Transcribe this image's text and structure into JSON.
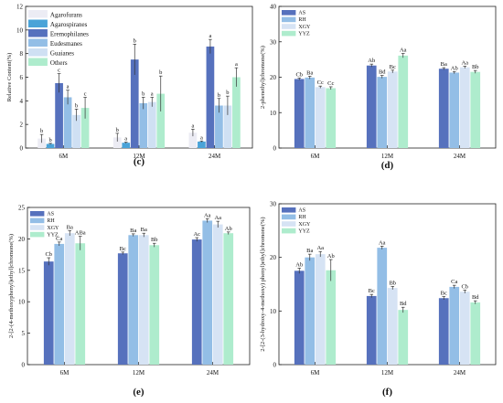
{
  "figure": {
    "series_colors": {
      "Agarofurans": "#ececf4",
      "Agarospiranes": "#4aa3d8",
      "Eremophilanes": "#5671bd",
      "Eudesmanes": "#93bee6",
      "Guaianes": "#cfe0f3",
      "Others": "#aeeccd",
      "AS": "#5671bd",
      "RH": "#93bee6",
      "XGY": "#d6e3f4",
      "YYZ": "#aeeccd"
    }
  },
  "chart_data": [
    {
      "type": "bar",
      "panel_label": "(c)",
      "ylabel": "Relative Content(%)",
      "ylim": [
        0,
        12
      ],
      "yticks": [
        0,
        2,
        4,
        6,
        8,
        10,
        12
      ],
      "categories": [
        "6M",
        "12M",
        "24M"
      ],
      "legend_position": "top-left",
      "series": [
        {
          "name": "Agarofurans",
          "values": [
            0.8,
            0.9,
            1.3
          ],
          "errors": [
            0.35,
            0.35,
            0.3
          ],
          "letters": [
            "b",
            "b",
            "a"
          ]
        },
        {
          "name": "Agarospiranes",
          "values": [
            0.35,
            0.45,
            0.55
          ],
          "errors": [
            0.05,
            0.05,
            0.05
          ],
          "letters": [
            "b",
            "a",
            "a"
          ]
        },
        {
          "name": "Eremophilanes",
          "values": [
            5.5,
            7.5,
            8.6
          ],
          "errors": [
            0.8,
            1.3,
            0.6
          ],
          "letters": [
            "c",
            "b",
            "a"
          ]
        },
        {
          "name": "Eudesmanes",
          "values": [
            4.3,
            3.8,
            3.6
          ],
          "errors": [
            0.6,
            0.5,
            0.6
          ],
          "letters": [
            "a",
            "b",
            "b"
          ]
        },
        {
          "name": "Guaianes",
          "values": [
            2.8,
            3.9,
            3.6
          ],
          "errors": [
            0.5,
            0.4,
            0.8
          ],
          "letters": [
            "b",
            "a",
            "b"
          ]
        },
        {
          "name": "Others",
          "values": [
            3.4,
            4.6,
            6.0
          ],
          "errors": [
            0.9,
            1.5,
            0.8
          ],
          "letters": [
            "c",
            "b",
            "a"
          ]
        }
      ]
    },
    {
      "type": "bar",
      "panel_label": "(d)",
      "ylabel": "2-phenethyl)chromone(%)",
      "ylim": [
        0,
        40
      ],
      "yticks": [
        0,
        10,
        20,
        30,
        40
      ],
      "categories": [
        "6M",
        "12M",
        "24M"
      ],
      "legend_position": "top-left",
      "series": [
        {
          "name": "AS",
          "values": [
            19.5,
            23.3,
            22.4
          ],
          "errors": [
            0.3,
            0.4,
            0.3
          ],
          "letters": [
            "Cb",
            "Ab",
            "Ba"
          ]
        },
        {
          "name": "RH",
          "values": [
            19.9,
            20.1,
            21.3
          ],
          "errors": [
            0.4,
            0.4,
            0.3
          ],
          "letters": [
            "Ba",
            "Bd",
            "Ab"
          ]
        },
        {
          "name": "XGY",
          "values": [
            17.2,
            21.6,
            22.8
          ],
          "errors": [
            0.3,
            0.4,
            0.3
          ],
          "letters": [
            "Cc",
            "Bc",
            "Aa"
          ]
        },
        {
          "name": "YYZ",
          "values": [
            16.9,
            26.1,
            21.5
          ],
          "errors": [
            0.4,
            0.6,
            0.4
          ],
          "letters": [
            "Cc",
            "Aa",
            "Bb"
          ]
        }
      ]
    },
    {
      "type": "bar",
      "panel_label": "(e)",
      "ylabel": "2-[2-(4-methoxyphenyl)ethyl]chromone(%)",
      "ylim": [
        0,
        25
      ],
      "yticks": [
        0,
        5,
        10,
        15,
        20,
        25
      ],
      "categories": [
        "6M",
        "12M",
        "24M"
      ],
      "legend_position": "top-left",
      "series": [
        {
          "name": "AS",
          "values": [
            16.4,
            17.7,
            19.9
          ],
          "errors": [
            0.6,
            0.2,
            0.3
          ],
          "letters": [
            "Cb",
            "Bc",
            "Ac"
          ]
        },
        {
          "name": "RH",
          "values": [
            19.2,
            20.6,
            22.9
          ],
          "errors": [
            0.3,
            0.2,
            0.3
          ],
          "letters": [
            "Ca",
            "Ba",
            "Aa"
          ]
        },
        {
          "name": "XGY",
          "values": [
            20.9,
            20.6,
            22.3
          ],
          "errors": [
            0.4,
            0.3,
            0.5
          ],
          "letters": [
            "Ba",
            "Ba",
            "Aa"
          ]
        },
        {
          "name": "YYZ",
          "values": [
            19.3,
            19.0,
            20.9
          ],
          "errors": [
            1.1,
            0.3,
            0.2
          ],
          "letters": [
            "ABa",
            "Bb",
            "Ab"
          ]
        }
      ]
    },
    {
      "type": "bar",
      "panel_label": "(f)",
      "ylabel": "2-[2-(3-hydroxy-4-methoxy) phenyl)ethyl]chromone(%)",
      "ylim": [
        0,
        30
      ],
      "yticks": [
        0,
        10,
        20,
        30
      ],
      "categories": [
        "6M",
        "12M",
        "24M"
      ],
      "legend_position": "top-left",
      "series": [
        {
          "name": "AS",
          "values": [
            17.5,
            12.8,
            12.4
          ],
          "errors": [
            0.5,
            0.3,
            0.3
          ],
          "letters": [
            "Ab",
            "Bc",
            "Bc"
          ]
        },
        {
          "name": "RH",
          "values": [
            20.0,
            21.8,
            14.5
          ],
          "errors": [
            0.6,
            0.3,
            0.3
          ],
          "letters": [
            "Ba",
            "Aa",
            "Ca"
          ]
        },
        {
          "name": "XGY",
          "values": [
            20.6,
            14.3,
            13.6
          ],
          "errors": [
            0.5,
            0.3,
            0.3
          ],
          "letters": [
            "Aa",
            "Bb",
            "Cb"
          ]
        },
        {
          "name": "YYZ",
          "values": [
            17.6,
            10.2,
            11.6
          ],
          "errors": [
            2.0,
            0.5,
            0.3
          ],
          "letters": [
            "Ab",
            "Bd",
            "Bd"
          ]
        }
      ]
    }
  ]
}
